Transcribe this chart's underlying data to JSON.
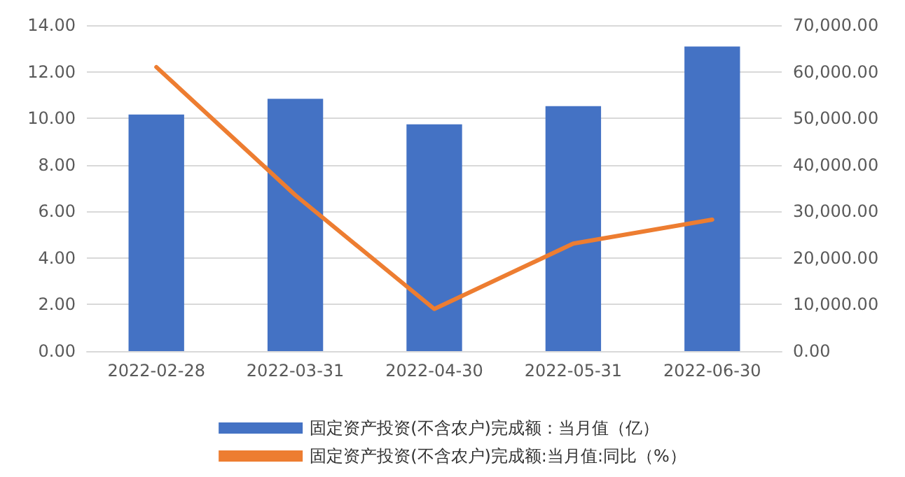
{
  "chart_data": {
    "type": "bar",
    "categories": [
      "2022-02-28",
      "2022-03-31",
      "2022-04-30",
      "2022-05-31",
      "2022-06-30"
    ],
    "series": [
      {
        "name": "固定资产投资(不含农户)完成额：当月值（亿）",
        "axis": "y2",
        "color": "#4472c4",
        "values": [
          50800,
          54200,
          48700,
          52600,
          65400
        ]
      },
      {
        "name": "固定资产投资(不含农户)完成额:当月值:同比（%）",
        "type": "line",
        "axis": "y",
        "color": "#ed7d31",
        "values": [
          12.2,
          6.7,
          1.81,
          4.62,
          5.65
        ],
        "marker": "none",
        "line_style": "solid"
      }
    ],
    "ylim": [
      0,
      14
    ],
    "yticks": [
      {
        "value": 0,
        "label": "0.00"
      },
      {
        "value": 2,
        "label": "2.00"
      },
      {
        "value": 4,
        "label": "4.00"
      },
      {
        "value": 6,
        "label": "6.00"
      },
      {
        "value": 8,
        "label": "8.00"
      },
      {
        "value": 10,
        "label": "10.00"
      },
      {
        "value": 12,
        "label": "12.00"
      },
      {
        "value": 14,
        "label": "14.00"
      }
    ],
    "y2lim": [
      0,
      70000
    ],
    "y2ticks": [
      {
        "value": 0,
        "label": "0.00"
      },
      {
        "value": 10000,
        "label": "10,000.00"
      },
      {
        "value": 20000,
        "label": "20,000.00"
      },
      {
        "value": 30000,
        "label": "30,000.00"
      },
      {
        "value": 40000,
        "label": "40,000.00"
      },
      {
        "value": 50000,
        "label": "50,000.00"
      },
      {
        "value": 60000,
        "label": "60,000.00"
      },
      {
        "value": 70000,
        "label": "70,000.00"
      }
    ],
    "grid": "y",
    "legend": "bottom"
  }
}
